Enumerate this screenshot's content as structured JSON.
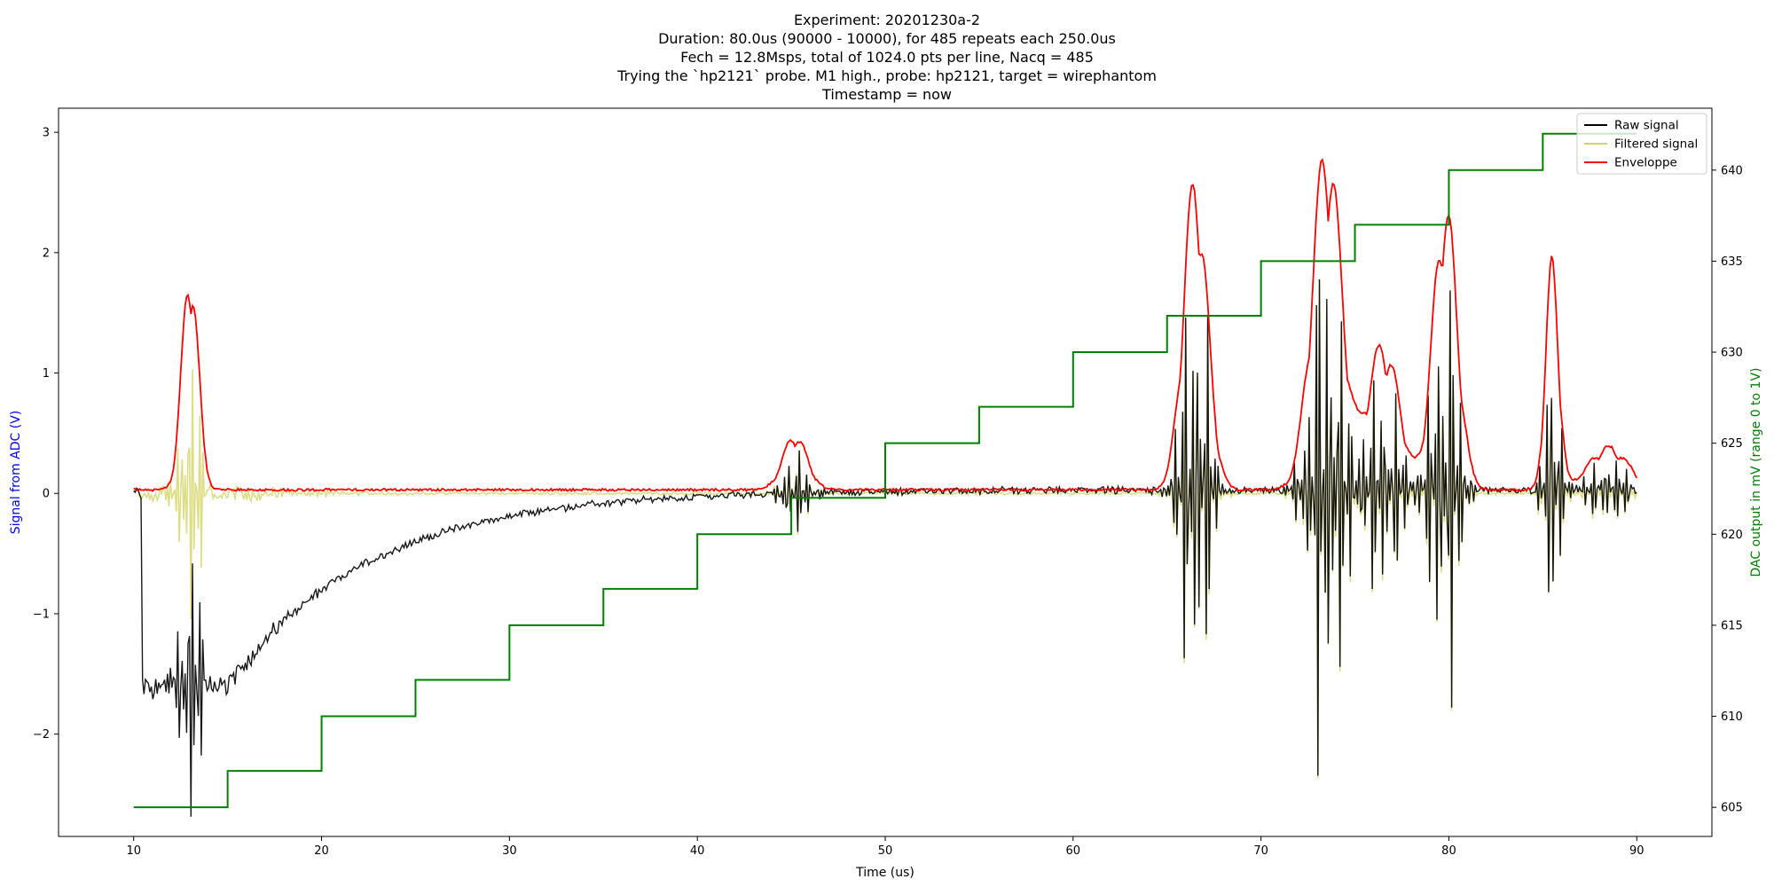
{
  "chart_data": {
    "type": "line",
    "title_lines": [
      "Experiment: 20201230a-2",
      "Duration: 80.0us (90000 - 10000), for 485 repeats each 250.0us",
      "Fech = 12.8Msps, total of 1024.0 pts per line, Nacq = 485",
      "Trying the `hp2121` probe. M1 high., probe: hp2121, target = wirephantom",
      "Timestamp = now"
    ],
    "xlabel": "Time (us)",
    "ylabel_left": "Signal from ADC (V)",
    "ylabel_right": "DAC output in mV (range 0 to 1V)",
    "xlim": [
      6,
      94
    ],
    "ylim_left": [
      -2.85,
      3.2
    ],
    "ylim_right": [
      603.4,
      643.4
    ],
    "x_ticks": [
      "10",
      "20",
      "30",
      "40",
      "50",
      "60",
      "70",
      "80",
      "90"
    ],
    "y_ticks_left": [
      "−2",
      "−1",
      "0",
      "1",
      "2",
      "3"
    ],
    "y_ticks_right": [
      "605",
      "610",
      "615",
      "620",
      "625",
      "630",
      "635",
      "640"
    ],
    "legend_position": "top-right",
    "colors": {
      "raw": "#000000",
      "filtered": "#d4d466",
      "envelope": "#ff0000",
      "dac": "#008000",
      "left_label": "#0000ff",
      "right_label": "#008000"
    },
    "series": [
      {
        "key": "raw",
        "name": "Raw signal"
      },
      {
        "key": "filtered",
        "name": "Filtered signal"
      },
      {
        "key": "envelope",
        "name": "Enveloppe"
      }
    ],
    "dac_steps": {
      "x": [
        10,
        15,
        20,
        25,
        30,
        35,
        40,
        45,
        50,
        55,
        60,
        65,
        70,
        75,
        80,
        85,
        90
      ],
      "y": [
        605,
        607,
        610,
        612,
        615,
        617,
        620,
        622,
        625,
        627,
        630,
        632,
        635,
        637,
        640,
        642,
        642
      ]
    },
    "bursts": [
      {
        "center": 13.0,
        "amplitude": 1.85,
        "width": 0.6
      },
      {
        "center": 45.2,
        "amplitude": 0.45,
        "width": 0.9
      },
      {
        "center": 66.5,
        "amplitude": 2.55,
        "width": 0.9
      },
      {
        "center": 73.5,
        "amplitude": 2.85,
        "width": 1.1
      },
      {
        "center": 76.5,
        "amplitude": 1.2,
        "width": 1.2
      },
      {
        "center": 79.8,
        "amplitude": 2.35,
        "width": 0.9
      },
      {
        "center": 85.5,
        "amplitude": 1.85,
        "width": 0.5
      },
      {
        "center": 88.5,
        "amplitude": 0.35,
        "width": 1.5
      }
    ],
    "raw_baseline": {
      "initial_drop_x": 10.4,
      "drop_level": -1.6,
      "recovery_start_x": 15.0,
      "recovery_tau_us": 7.5,
      "settle_level": 0.03
    }
  }
}
